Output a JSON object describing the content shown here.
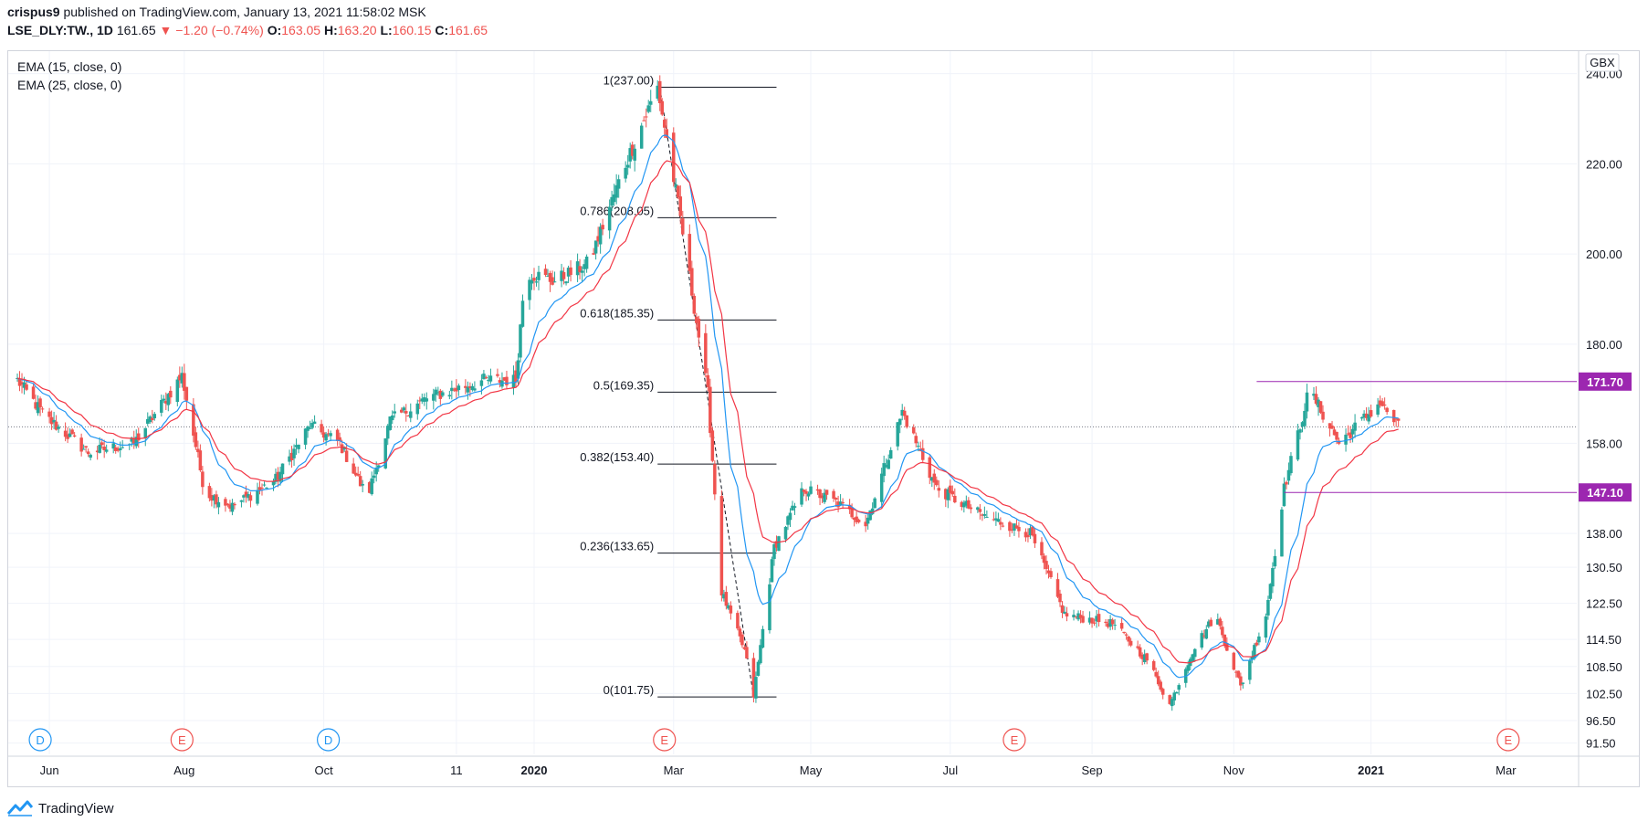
{
  "header": {
    "publisher": "crispus9",
    "published_text": "published on TradingView.com, January 13, 2021 11:58:02 MSK",
    "symbol": "LSE_DLY:TW., 1D",
    "last": "161.65",
    "change": "−1.20 (−0.74%)",
    "o_label": "O:",
    "o": "163.05",
    "h_label": "H:",
    "h": "163.20",
    "l_label": "L:",
    "l": "160.15",
    "c_label": "C:",
    "c": "161.65"
  },
  "indicators": [
    "EMA (15, close, 0)",
    "EMA (25, close, 0)"
  ],
  "currency": "GBX",
  "footer": {
    "brand": "TradingView"
  },
  "colors": {
    "up": "#26a69a",
    "down": "#ef5350",
    "ema15": "#2196f3",
    "ema25": "#f23645",
    "level": "#9c27b0",
    "dividend": "#2196f3",
    "earnings": "#ef5350"
  },
  "chart_data": {
    "type": "candlestick",
    "title": "LSE_DLY:TW., 1D",
    "y_axis_ticks": [
      "240.00",
      "220.00",
      "200.00",
      "180.00",
      "171.70",
      "158.00",
      "147.10",
      "138.00",
      "130.50",
      "122.50",
      "114.50",
      "108.50",
      "102.50",
      "96.50",
      "91.50"
    ],
    "x_axis_ticks": [
      "Jun",
      "Aug",
      "Oct",
      "11",
      "2020",
      "Mar",
      "May",
      "Jul",
      "Sep",
      "Nov",
      "2021",
      "Mar"
    ],
    "ylim": [
      89,
      245
    ],
    "price_key": [
      {
        "date": "2019-05-20",
        "close": 172
      },
      {
        "date": "2019-06-01",
        "close": 164
      },
      {
        "date": "2019-06-20",
        "close": 156
      },
      {
        "date": "2019-07-10",
        "close": 158
      },
      {
        "date": "2019-07-31",
        "close": 173
      },
      {
        "date": "2019-08-10",
        "close": 147
      },
      {
        "date": "2019-08-22",
        "close": 144
      },
      {
        "date": "2019-09-10",
        "close": 150
      },
      {
        "date": "2019-09-25",
        "close": 162
      },
      {
        "date": "2019-10-08",
        "close": 158
      },
      {
        "date": "2019-10-20",
        "close": 146
      },
      {
        "date": "2019-10-30",
        "close": 163
      },
      {
        "date": "2019-11-15",
        "close": 168
      },
      {
        "date": "2019-12-10",
        "close": 172
      },
      {
        "date": "2019-12-24",
        "close": 172
      },
      {
        "date": "2019-12-28",
        "close": 196
      },
      {
        "date": "2020-01-10",
        "close": 194
      },
      {
        "date": "2020-01-25",
        "close": 198
      },
      {
        "date": "2020-02-10",
        "close": 220
      },
      {
        "date": "2020-02-24",
        "close": 237
      },
      {
        "date": "2020-03-05",
        "close": 208
      },
      {
        "date": "2020-03-12",
        "close": 185
      },
      {
        "date": "2020-03-17",
        "close": 169
      },
      {
        "date": "2020-03-23",
        "close": 125
      },
      {
        "date": "2020-04-02",
        "close": 112
      },
      {
        "date": "2020-04-06",
        "close": 102
      },
      {
        "date": "2020-04-15",
        "close": 135
      },
      {
        "date": "2020-04-28",
        "close": 148
      },
      {
        "date": "2020-05-12",
        "close": 145
      },
      {
        "date": "2020-05-25",
        "close": 140
      },
      {
        "date": "2020-06-10",
        "close": 165
      },
      {
        "date": "2020-06-25",
        "close": 148
      },
      {
        "date": "2020-07-15",
        "close": 142
      },
      {
        "date": "2020-08-05",
        "close": 138
      },
      {
        "date": "2020-08-20",
        "close": 120
      },
      {
        "date": "2020-09-10",
        "close": 118
      },
      {
        "date": "2020-09-25",
        "close": 110
      },
      {
        "date": "2020-10-05",
        "close": 100
      },
      {
        "date": "2020-10-15",
        "close": 112
      },
      {
        "date": "2020-10-25",
        "close": 120
      },
      {
        "date": "2020-11-05",
        "close": 104
      },
      {
        "date": "2020-11-16",
        "close": 120
      },
      {
        "date": "2020-11-24",
        "close": 148
      },
      {
        "date": "2020-12-05",
        "close": 170
      },
      {
        "date": "2020-12-18",
        "close": 158
      },
      {
        "date": "2021-01-05",
        "close": 167
      },
      {
        "date": "2021-01-13",
        "close": 161.65
      }
    ],
    "fibonacci": {
      "high": 237.0,
      "low": 101.75,
      "levels": [
        {
          "label": "1(237.00)",
          "value": 237.0
        },
        {
          "label": "0.786(208.05)",
          "value": 208.05
        },
        {
          "label": "0.618(185.35)",
          "value": 185.35
        },
        {
          "label": "0.5(169.35)",
          "value": 169.35
        },
        {
          "label": "0.382(153.40)",
          "value": 153.4
        },
        {
          "label": "0.236(133.65)",
          "value": 133.65
        },
        {
          "label": "0(101.75)",
          "value": 101.75
        }
      ]
    },
    "horizontal_lines": [
      {
        "label": "171.70",
        "value": 171.7
      },
      {
        "label": "147.10",
        "value": 147.1
      }
    ],
    "last_price_line": 161.65,
    "events": [
      {
        "type": "dividend",
        "letter": "D",
        "date": "2019-05-30"
      },
      {
        "type": "earnings",
        "letter": "E",
        "date": "2019-07-31"
      },
      {
        "type": "dividend",
        "letter": "D",
        "date": "2019-10-03"
      },
      {
        "type": "earnings",
        "letter": "E",
        "date": "2020-02-27"
      },
      {
        "type": "earnings",
        "letter": "E",
        "date": "2020-07-29"
      },
      {
        "type": "earnings",
        "letter": "E",
        "date": "2021-03-02"
      }
    ]
  }
}
